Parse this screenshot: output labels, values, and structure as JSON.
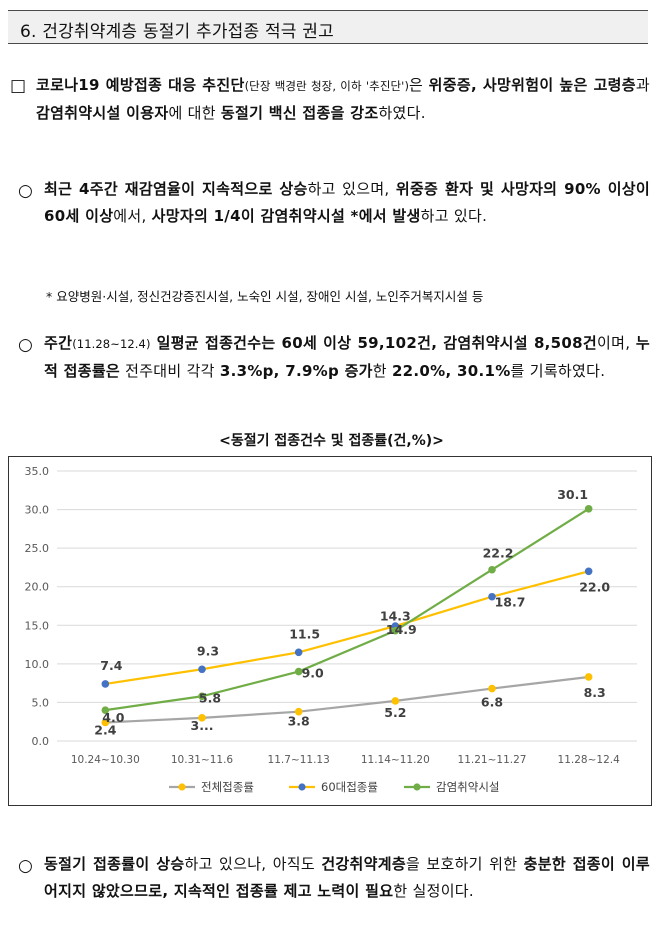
{
  "section": {
    "title": "6. 건강취약계층 동절기 추가접종 적극 권고"
  },
  "p1": {
    "bullet": "□",
    "s1": "코로나19 예방접종 대응 추진단",
    "s2": "(단장 백경란 청장, 이하 '추진단')",
    "s3": "은 ",
    "s4": "위중증, 사망위험이 높은 고령층",
    "s5": "과 ",
    "s6": "감염취약시설 이용자",
    "s7": "에 대한 ",
    "s8": "동절기 백신 접종을 강조",
    "s9": "하였다."
  },
  "p2": {
    "bullet": "○",
    "s1": "최근 4주간 재감염율이 지속적으로 상승",
    "s2": "하고 있으며, ",
    "s3": "위중증 환자 및 사망자의 90% 이상이 60세 이상",
    "s4": "에서, ",
    "s5": "사망자의 1/4이 감염취약시설 *에서 발생",
    "s6": "하고 있다."
  },
  "note": {
    "text": "* 요양병원·시설, 정신건강증진시설, 노숙인 시설, 장애인 시설, 노인주거복지시설 등"
  },
  "p3": {
    "bullet": "○",
    "s1": "주간",
    "s2": "(11.28~12.4)",
    "s3": " 일평균 접종건수는 60세 이상 59,102건, 감염취약시설 8,508건",
    "s4": "이며, ",
    "s5": "누적 접종률은",
    "s6": " 전주대비 각각 ",
    "s7": "3.3%p, 7.9%p 증가",
    "s8": "한 ",
    "s9": "22.0%, 30.1%",
    "s10": "를 기록하였다."
  },
  "chart_data": {
    "type": "line",
    "title": "<동절기 접종건수 및 접종률(건,%)>",
    "xlabel": "",
    "ylabel": "",
    "ylim": [
      0,
      35
    ],
    "yticks": [
      "0.0",
      "5.0",
      "10.0",
      "15.0",
      "20.0",
      "25.0",
      "30.0",
      "35.0"
    ],
    "categories": [
      "10.24~10.30",
      "10.31~11.6",
      "11.7~11.13",
      "11.14~11.20",
      "11.21~11.27",
      "11.28~12.4"
    ],
    "grid": "horizontal",
    "legend_position": "bottom",
    "series": [
      {
        "name": "전체접종률",
        "values": [
          2.4,
          3.0,
          3.8,
          5.2,
          6.8,
          8.3
        ],
        "labels": [
          "2.4",
          "3...",
          "3.8",
          "5.2",
          "6.8",
          "8.3"
        ],
        "line_color": "#a6a6a6",
        "marker_color": "#ffc000"
      },
      {
        "name": "60대접종률",
        "values": [
          7.4,
          9.3,
          11.5,
          14.9,
          18.7,
          22.0
        ],
        "labels": [
          "7.4",
          "9.3",
          "11.5",
          "14.9",
          "18.7",
          "22.0"
        ],
        "line_color": "#ffc000",
        "marker_color": "#4472c4"
      },
      {
        "name": "감염취약시설",
        "values": [
          4.0,
          5.8,
          9.0,
          14.3,
          22.2,
          30.1
        ],
        "labels": [
          "4.0",
          "5.8",
          "9.0",
          "14.3",
          "22.2",
          "30.1"
        ],
        "line_color": "#70ad47",
        "marker_color": "#70ad47"
      }
    ]
  },
  "p4": {
    "bullet": "○",
    "s1": "동절기 접종률이 상승",
    "s2": "하고 있으나, 아직도 ",
    "s3": "건강취약계층",
    "s4": "을 보호하기 위한 ",
    "s5": "충분한 접종이 이루어지지 않았으므로, 지속적인 접종률 제고 노력이 필요",
    "s6": "한 실정이다."
  }
}
